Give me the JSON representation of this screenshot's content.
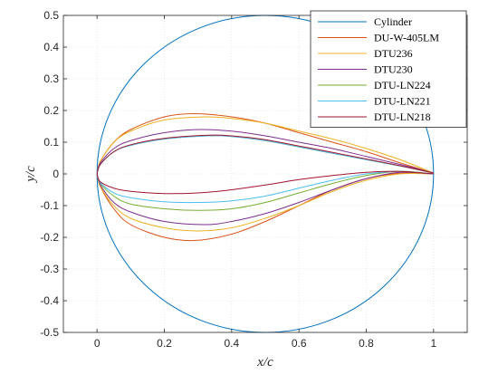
{
  "chart_data": {
    "type": "line",
    "title": "",
    "xlabel": "x/c",
    "ylabel": "y/c",
    "xlim": [
      -0.1,
      1.1
    ],
    "ylim": [
      -0.5,
      0.5
    ],
    "xticks": [
      0,
      0.2,
      0.4,
      0.6,
      0.8,
      1
    ],
    "xtick_labels": [
      "0",
      "0.2",
      "0.4",
      "0.6",
      "0.8",
      "1"
    ],
    "yticks": [
      -0.5,
      -0.4,
      -0.3,
      -0.2,
      -0.1,
      0,
      0.1,
      0.2,
      0.3,
      0.4,
      0.5
    ],
    "ytick_labels": [
      "-0.5",
      "-0.4",
      "-0.3",
      "-0.2",
      "-0.1",
      "0",
      "0.1",
      "0.2",
      "0.3",
      "0.4",
      "0.5"
    ],
    "grid": true,
    "legend_position": "top-right",
    "series": [
      {
        "name": "Cylinder",
        "color": "#0072BD",
        "shape": "circle",
        "center": [
          0.5,
          0
        ],
        "radius": 0.5
      },
      {
        "name": "DU-W-405LM",
        "color": "#D95319",
        "upper": [
          [
            0,
            0
          ],
          [
            0.01,
            0.04
          ],
          [
            0.05,
            0.1
          ],
          [
            0.1,
            0.14
          ],
          [
            0.2,
            0.18
          ],
          [
            0.29,
            0.19
          ],
          [
            0.4,
            0.18
          ],
          [
            0.5,
            0.16
          ],
          [
            0.6,
            0.13
          ],
          [
            0.7,
            0.1
          ],
          [
            0.8,
            0.07
          ],
          [
            0.9,
            0.035
          ],
          [
            1,
            0.003
          ]
        ],
        "lower": [
          [
            0,
            0
          ],
          [
            0.01,
            -0.04
          ],
          [
            0.05,
            -0.11
          ],
          [
            0.1,
            -0.16
          ],
          [
            0.2,
            -0.2
          ],
          [
            0.29,
            -0.21
          ],
          [
            0.4,
            -0.19
          ],
          [
            0.5,
            -0.15
          ],
          [
            0.6,
            -0.1
          ],
          [
            0.7,
            -0.05
          ],
          [
            0.8,
            -0.015
          ],
          [
            0.9,
            0.002
          ],
          [
            1,
            0
          ]
        ]
      },
      {
        "name": "DTU236",
        "color": "#EDB120",
        "upper": [
          [
            0,
            0
          ],
          [
            0.01,
            0.04
          ],
          [
            0.05,
            0.1
          ],
          [
            0.1,
            0.135
          ],
          [
            0.2,
            0.17
          ],
          [
            0.32,
            0.18
          ],
          [
            0.4,
            0.175
          ],
          [
            0.5,
            0.16
          ],
          [
            0.6,
            0.135
          ],
          [
            0.7,
            0.11
          ],
          [
            0.8,
            0.08
          ],
          [
            0.9,
            0.045
          ],
          [
            1,
            0.003
          ]
        ],
        "lower": [
          [
            0,
            0
          ],
          [
            0.01,
            -0.04
          ],
          [
            0.05,
            -0.1
          ],
          [
            0.1,
            -0.14
          ],
          [
            0.2,
            -0.17
          ],
          [
            0.3,
            -0.18
          ],
          [
            0.4,
            -0.17
          ],
          [
            0.5,
            -0.14
          ],
          [
            0.6,
            -0.1
          ],
          [
            0.7,
            -0.055
          ],
          [
            0.8,
            -0.02
          ],
          [
            0.9,
            0
          ],
          [
            1,
            0
          ]
        ]
      },
      {
        "name": "DTU230",
        "color": "#7E2F8E",
        "upper": [
          [
            0,
            0
          ],
          [
            0.01,
            0.035
          ],
          [
            0.05,
            0.08
          ],
          [
            0.1,
            0.105
          ],
          [
            0.2,
            0.13
          ],
          [
            0.3,
            0.14
          ],
          [
            0.4,
            0.135
          ],
          [
            0.5,
            0.12
          ],
          [
            0.6,
            0.1
          ],
          [
            0.7,
            0.08
          ],
          [
            0.8,
            0.055
          ],
          [
            0.9,
            0.03
          ],
          [
            1,
            0.003
          ]
        ],
        "lower": [
          [
            0,
            0
          ],
          [
            0.01,
            -0.035
          ],
          [
            0.05,
            -0.09
          ],
          [
            0.1,
            -0.12
          ],
          [
            0.2,
            -0.15
          ],
          [
            0.32,
            -0.16
          ],
          [
            0.4,
            -0.15
          ],
          [
            0.5,
            -0.125
          ],
          [
            0.6,
            -0.09
          ],
          [
            0.7,
            -0.05
          ],
          [
            0.8,
            -0.015
          ],
          [
            0.9,
            0.005
          ],
          [
            1,
            0
          ]
        ]
      },
      {
        "name": "DTU-LN224",
        "color": "#77AC30",
        "upper": [
          [
            0,
            0
          ],
          [
            0.01,
            0.03
          ],
          [
            0.05,
            0.07
          ],
          [
            0.1,
            0.09
          ],
          [
            0.2,
            0.11
          ],
          [
            0.33,
            0.12
          ],
          [
            0.4,
            0.118
          ],
          [
            0.5,
            0.105
          ],
          [
            0.6,
            0.085
          ],
          [
            0.7,
            0.065
          ],
          [
            0.8,
            0.045
          ],
          [
            0.9,
            0.025
          ],
          [
            1,
            0.003
          ]
        ],
        "lower": [
          [
            0,
            0
          ],
          [
            0.01,
            -0.03
          ],
          [
            0.05,
            -0.07
          ],
          [
            0.1,
            -0.095
          ],
          [
            0.2,
            -0.11
          ],
          [
            0.3,
            -0.115
          ],
          [
            0.4,
            -0.11
          ],
          [
            0.5,
            -0.09
          ],
          [
            0.6,
            -0.06
          ],
          [
            0.7,
            -0.03
          ],
          [
            0.8,
            -0.005
          ],
          [
            0.9,
            0.008
          ],
          [
            1,
            0
          ]
        ]
      },
      {
        "name": "DTU-LN221",
        "color": "#4DBEEE",
        "upper": [
          [
            0,
            0
          ],
          [
            0.01,
            0.03
          ],
          [
            0.05,
            0.07
          ],
          [
            0.1,
            0.09
          ],
          [
            0.2,
            0.11
          ],
          [
            0.33,
            0.12
          ],
          [
            0.4,
            0.118
          ],
          [
            0.5,
            0.105
          ],
          [
            0.6,
            0.085
          ],
          [
            0.7,
            0.065
          ],
          [
            0.8,
            0.045
          ],
          [
            0.9,
            0.025
          ],
          [
            1,
            0.003
          ]
        ],
        "lower": [
          [
            0,
            0
          ],
          [
            0.01,
            -0.028
          ],
          [
            0.05,
            -0.06
          ],
          [
            0.1,
            -0.075
          ],
          [
            0.2,
            -0.088
          ],
          [
            0.3,
            -0.09
          ],
          [
            0.4,
            -0.085
          ],
          [
            0.5,
            -0.07
          ],
          [
            0.6,
            -0.045
          ],
          [
            0.7,
            -0.02
          ],
          [
            0.8,
            0
          ],
          [
            0.9,
            0.008
          ],
          [
            1,
            0
          ]
        ]
      },
      {
        "name": "DTU-LN218",
        "color": "#A2142F",
        "upper": [
          [
            0,
            0
          ],
          [
            0.01,
            0.03
          ],
          [
            0.05,
            0.07
          ],
          [
            0.1,
            0.092
          ],
          [
            0.2,
            0.112
          ],
          [
            0.33,
            0.122
          ],
          [
            0.4,
            0.12
          ],
          [
            0.5,
            0.108
          ],
          [
            0.6,
            0.088
          ],
          [
            0.7,
            0.068
          ],
          [
            0.8,
            0.047
          ],
          [
            0.9,
            0.026
          ],
          [
            1,
            0.003
          ]
        ],
        "lower": [
          [
            0,
            0
          ],
          [
            0.01,
            -0.025
          ],
          [
            0.05,
            -0.045
          ],
          [
            0.1,
            -0.055
          ],
          [
            0.2,
            -0.062
          ],
          [
            0.3,
            -0.06
          ],
          [
            0.4,
            -0.05
          ],
          [
            0.5,
            -0.035
          ],
          [
            0.6,
            -0.018
          ],
          [
            0.7,
            -0.005
          ],
          [
            0.8,
            0.005
          ],
          [
            0.9,
            0.008
          ],
          [
            1,
            0
          ]
        ]
      }
    ]
  }
}
